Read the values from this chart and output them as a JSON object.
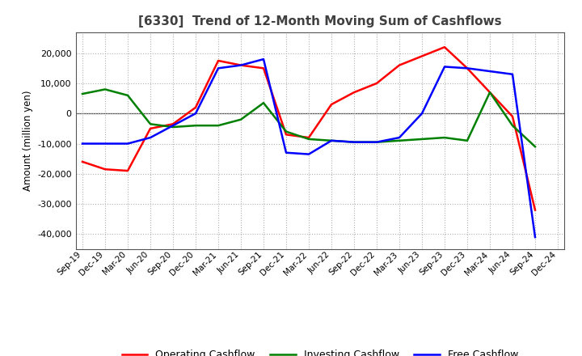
{
  "title": "[6330]  Trend of 12-Month Moving Sum of Cashflows",
  "ylabel": "Amount (million yen)",
  "xlabels": [
    "Sep-19",
    "Dec-19",
    "Mar-20",
    "Jun-20",
    "Sep-20",
    "Dec-20",
    "Mar-21",
    "Jun-21",
    "Sep-21",
    "Dec-21",
    "Mar-22",
    "Jun-22",
    "Sep-22",
    "Dec-22",
    "Mar-23",
    "Jun-23",
    "Sep-23",
    "Dec-23",
    "Mar-24",
    "Jun-24",
    "Sep-24",
    "Dec-24"
  ],
  "operating": [
    -16000,
    -18500,
    -19000,
    -5000,
    -3500,
    2000,
    17500,
    16000,
    15000,
    -7000,
    -8000,
    3000,
    7000,
    10000,
    16000,
    19000,
    22000,
    15000,
    7000,
    -1000,
    -32000,
    null
  ],
  "investing": [
    6500,
    8000,
    6000,
    -3500,
    -4500,
    -4000,
    -4000,
    -2000,
    3500,
    -6000,
    -8500,
    -9000,
    -9500,
    -9500,
    -9000,
    -8500,
    -8000,
    -9000,
    7000,
    -4000,
    -11000,
    null
  ],
  "free": [
    -10000,
    -10000,
    -10000,
    -8000,
    -4000,
    0,
    15000,
    16000,
    18000,
    -13000,
    -13500,
    -9000,
    -9500,
    -9500,
    -8000,
    0,
    15500,
    15000,
    14000,
    13000,
    -41000,
    null
  ],
  "ylim": [
    -45000,
    27000
  ],
  "yticks": [
    -40000,
    -30000,
    -20000,
    -10000,
    0,
    10000,
    20000
  ],
  "colors": {
    "operating": "#ff0000",
    "investing": "#008000",
    "free": "#0000ff"
  },
  "legend_labels": [
    "Operating Cashflow",
    "Investing Cashflow",
    "Free Cashflow"
  ],
  "background_color": "#ffffff",
  "grid_color": "#b0b0b0",
  "title_color": "#404040"
}
